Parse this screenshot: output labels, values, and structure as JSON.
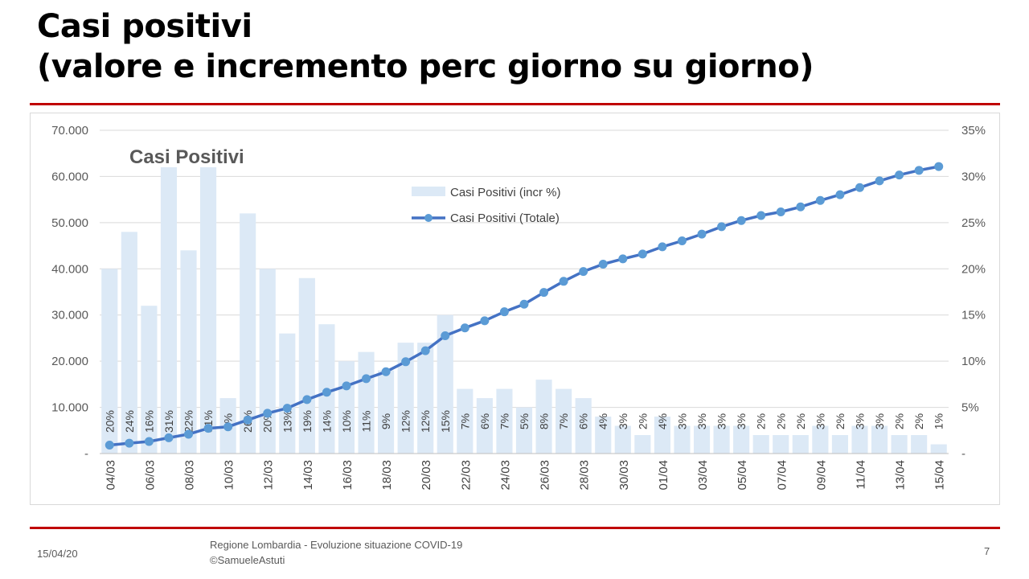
{
  "slide": {
    "title_line1": "Casi positivi",
    "title_line2": "(valore e incremento perc giorno su giorno)",
    "footer_date": "15/04/20",
    "footer_source_line1": "Regione Lombardia - Evoluzione situazione COVID-19",
    "footer_source_line2": "©SamueleAstuti",
    "page_number": "7",
    "rule_color": "#c00000"
  },
  "chart_data": {
    "type": "bar+line",
    "title": "Casi Positivi",
    "categories": [
      "04/03",
      "05/03",
      "06/03",
      "07/03",
      "08/03",
      "09/03",
      "10/03",
      "11/03",
      "12/03",
      "13/03",
      "14/03",
      "15/03",
      "16/03",
      "17/03",
      "18/03",
      "19/03",
      "20/03",
      "21/03",
      "22/03",
      "23/03",
      "24/03",
      "25/03",
      "26/03",
      "27/03",
      "28/03",
      "29/03",
      "30/03",
      "31/03",
      "01/04",
      "02/04",
      "03/04",
      "04/04",
      "05/04",
      "06/04",
      "07/04",
      "08/04",
      "09/04",
      "10/04",
      "11/04",
      "12/04",
      "13/04",
      "14/04",
      "15/04"
    ],
    "x_tick_labels": [
      "04/03",
      "06/03",
      "08/03",
      "10/03",
      "12/03",
      "14/03",
      "16/03",
      "18/03",
      "20/03",
      "22/03",
      "24/03",
      "26/03",
      "28/03",
      "30/03",
      "01/04",
      "03/04",
      "05/04",
      "07/04",
      "09/04",
      "11/04",
      "13/04",
      "15/04"
    ],
    "series": [
      {
        "name": "Casi Positivi (incr %)",
        "type": "bar",
        "axis": "right",
        "color": "#dce9f6",
        "values": [
          20,
          24,
          16,
          31,
          22,
          31,
          6,
          26,
          20,
          13,
          19,
          14,
          10,
          11,
          9,
          12,
          12,
          15,
          7,
          6,
          7,
          5,
          8,
          7,
          6,
          4,
          3,
          2,
          4,
          3,
          3,
          3,
          3,
          2,
          2,
          2,
          3,
          2,
          3,
          3,
          2,
          2,
          1
        ],
        "data_labels": [
          "20%",
          "24%",
          "16%",
          "31%",
          "22%",
          "31%",
          "6%",
          "26%",
          "20%",
          "13%",
          "19%",
          "14%",
          "10%",
          "11%",
          "9%",
          "12%",
          "12%",
          "15%",
          "7%",
          "6%",
          "7%",
          "5%",
          "8%",
          "7%",
          "6%",
          "4%",
          "3%",
          "2%",
          "4%",
          "3%",
          "3%",
          "3%",
          "3%",
          "2%",
          "2%",
          "2%",
          "3%",
          "2%",
          "3%",
          "3%",
          "2%",
          "2%",
          "1%"
        ]
      },
      {
        "name": "Casi Positivi (Totale)",
        "type": "line",
        "axis": "left",
        "color": "#4472c4",
        "marker_color": "#5b9bd5",
        "values": [
          1820,
          2251,
          2612,
          3420,
          4189,
          5469,
          5791,
          7280,
          8725,
          9820,
          11685,
          13272,
          14649,
          16220,
          17713,
          19884,
          22264,
          25515,
          27206,
          28761,
          30703,
          32346,
          34889,
          37298,
          39415,
          41007,
          42161,
          43208,
          44773,
          46065,
          47520,
          49118,
          50455,
          51534,
          52325,
          53414,
          54802,
          56048,
          57592,
          59052,
          60314,
          61326,
          62153
        ]
      }
    ],
    "left_axis": {
      "ylim": [
        0,
        70000
      ],
      "tick_labels": [
        "-",
        "10.000",
        "20.000",
        "30.000",
        "40.000",
        "50.000",
        "60.000",
        "70.000"
      ]
    },
    "right_axis": {
      "ylim": [
        0,
        35
      ],
      "tick_labels": [
        "-",
        "5%",
        "10%",
        "15%",
        "20%",
        "25%",
        "30%",
        "35%"
      ]
    },
    "grid": true,
    "legend": "top-center"
  }
}
